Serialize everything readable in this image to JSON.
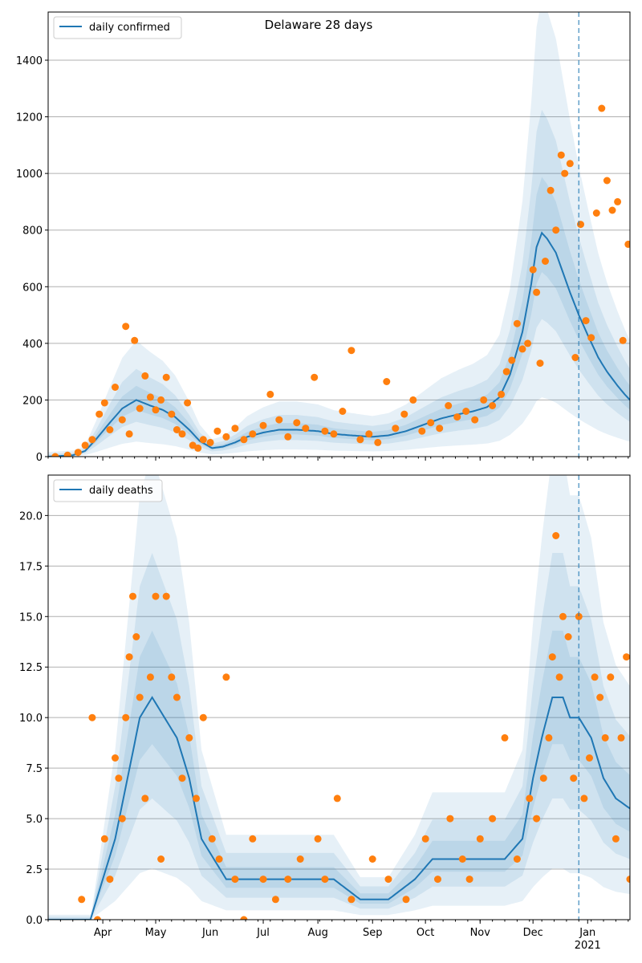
{
  "colors": {
    "line": "#1f77b4",
    "points": "#ff7f0e",
    "band": "#1f77b4",
    "grid": "#b0b0b0",
    "vline": "#1f77b4"
  },
  "chart_data": [
    {
      "type": "line",
      "title": "Delaware 28 days",
      "legend": {
        "label": "daily confirmed",
        "placement": "top-left"
      },
      "grid": "horizontal",
      "xlim": [
        "2020-03-01",
        "2021-01-25"
      ],
      "ylim": [
        0,
        1570
      ],
      "yticks": [
        0,
        200,
        400,
        600,
        800,
        1000,
        1200,
        1400
      ],
      "ytick_labels": [
        "0",
        "200",
        "400",
        "600",
        "800",
        "1000",
        "1200",
        "1400"
      ],
      "forecast_start": "2020-12-27",
      "median": {
        "dates": [
          "2020-03-01",
          "2020-03-15",
          "2020-03-22",
          "2020-03-28",
          "2020-04-05",
          "2020-04-12",
          "2020-04-20",
          "2020-04-28",
          "2020-05-05",
          "2020-05-12",
          "2020-05-20",
          "2020-05-26",
          "2020-06-02",
          "2020-06-08",
          "2020-06-15",
          "2020-06-22",
          "2020-07-01",
          "2020-07-10",
          "2020-07-20",
          "2020-08-01",
          "2020-08-10",
          "2020-08-20",
          "2020-09-01",
          "2020-09-10",
          "2020-09-20",
          "2020-10-01",
          "2020-10-10",
          "2020-10-20",
          "2020-10-28",
          "2020-11-05",
          "2020-11-12",
          "2020-11-18",
          "2020-11-25",
          "2020-11-30",
          "2020-12-03",
          "2020-12-06",
          "2020-12-09",
          "2020-12-14",
          "2020-12-18",
          "2020-12-22",
          "2020-12-27",
          "2021-01-01",
          "2021-01-07",
          "2021-01-12",
          "2021-01-18",
          "2021-01-22",
          "2021-01-25"
        ],
        "values": [
          0,
          5,
          20,
          60,
          120,
          170,
          200,
          180,
          165,
          140,
          95,
          55,
          30,
          35,
          50,
          70,
          85,
          95,
          95,
          90,
          80,
          75,
          70,
          75,
          90,
          115,
          135,
          150,
          160,
          175,
          210,
          290,
          440,
          610,
          740,
          790,
          770,
          720,
          650,
          580,
          500,
          430,
          350,
          300,
          250,
          220,
          200
        ]
      },
      "band_half_widths": [
        0.25,
        0.55,
        1.05
      ],
      "observed": {
        "dates": [
          "2020-03-05",
          "2020-03-12",
          "2020-03-18",
          "2020-03-22",
          "2020-03-26",
          "2020-03-30",
          "2020-04-02",
          "2020-04-05",
          "2020-04-08",
          "2020-04-12",
          "2020-04-14",
          "2020-04-16",
          "2020-04-19",
          "2020-04-22",
          "2020-04-25",
          "2020-04-28",
          "2020-05-01",
          "2020-05-04",
          "2020-05-07",
          "2020-05-10",
          "2020-05-13",
          "2020-05-16",
          "2020-05-19",
          "2020-05-22",
          "2020-05-25",
          "2020-05-28",
          "2020-06-01",
          "2020-06-05",
          "2020-06-10",
          "2020-06-15",
          "2020-06-20",
          "2020-06-25",
          "2020-07-01",
          "2020-07-05",
          "2020-07-10",
          "2020-07-15",
          "2020-07-20",
          "2020-07-25",
          "2020-07-30",
          "2020-08-05",
          "2020-08-10",
          "2020-08-15",
          "2020-08-20",
          "2020-08-25",
          "2020-08-30",
          "2020-09-04",
          "2020-09-09",
          "2020-09-14",
          "2020-09-19",
          "2020-09-24",
          "2020-09-29",
          "2020-10-04",
          "2020-10-09",
          "2020-10-14",
          "2020-10-19",
          "2020-10-24",
          "2020-10-29",
          "2020-11-03",
          "2020-11-08",
          "2020-11-13",
          "2020-11-16",
          "2020-11-19",
          "2020-11-22",
          "2020-11-25",
          "2020-11-28",
          "2020-12-01",
          "2020-12-03",
          "2020-12-05",
          "2020-12-08",
          "2020-12-11",
          "2020-12-14",
          "2020-12-17",
          "2020-12-19",
          "2020-12-22",
          "2020-12-25",
          "2020-12-28",
          "2020-12-31",
          "2021-01-03",
          "2021-01-06",
          "2021-01-09",
          "2021-01-12",
          "2021-01-15",
          "2021-01-18",
          "2021-01-21",
          "2021-01-24"
        ],
        "values": [
          0,
          5,
          15,
          40,
          60,
          150,
          190,
          95,
          245,
          130,
          460,
          80,
          410,
          170,
          285,
          210,
          165,
          200,
          280,
          150,
          95,
          80,
          190,
          40,
          30,
          60,
          50,
          90,
          70,
          100,
          60,
          80,
          110,
          220,
          130,
          70,
          120,
          100,
          280,
          90,
          80,
          160,
          375,
          60,
          80,
          50,
          265,
          100,
          150,
          200,
          90,
          120,
          100,
          180,
          140,
          160,
          130,
          200,
          180,
          220,
          300,
          340,
          470,
          380,
          400,
          660,
          580,
          330,
          690,
          940,
          800,
          1065,
          1000,
          1035,
          350,
          820,
          480,
          420,
          860,
          1230,
          975,
          870,
          900,
          410,
          750
        ]
      }
    },
    {
      "type": "line",
      "title": "",
      "legend": {
        "label": "daily deaths",
        "placement": "top-left"
      },
      "grid": "horizontal",
      "xlim": [
        "2020-03-01",
        "2021-01-25"
      ],
      "ylim": [
        0,
        22
      ],
      "yticks": [
        0,
        2.5,
        5,
        7.5,
        10,
        12.5,
        15,
        17.5,
        20
      ],
      "ytick_labels": [
        "0.0",
        "2.5",
        "5.0",
        "7.5",
        "10.0",
        "12.5",
        "15.0",
        "17.5",
        "20.0"
      ],
      "forecast_start": "2020-12-27",
      "median": {
        "dates": [
          "2020-03-01",
          "2020-03-25",
          "2020-04-01",
          "2020-04-08",
          "2020-04-15",
          "2020-04-22",
          "2020-04-29",
          "2020-05-06",
          "2020-05-13",
          "2020-05-20",
          "2020-05-27",
          "2020-06-03",
          "2020-06-10",
          "2020-06-17",
          "2020-07-01",
          "2020-07-20",
          "2020-08-01",
          "2020-08-10",
          "2020-08-25",
          "2020-09-10",
          "2020-09-25",
          "2020-10-05",
          "2020-10-20",
          "2020-11-01",
          "2020-11-15",
          "2020-11-25",
          "2020-12-01",
          "2020-12-06",
          "2020-12-12",
          "2020-12-18",
          "2020-12-22",
          "2020-12-27",
          "2021-01-03",
          "2021-01-10",
          "2021-01-17",
          "2021-01-25"
        ],
        "values": [
          0,
          0,
          2,
          4,
          7,
          10,
          11,
          10,
          9,
          7,
          4,
          3,
          2,
          2,
          2,
          2,
          2,
          2,
          1,
          1,
          2,
          3,
          3,
          3,
          3,
          4,
          7,
          9,
          11,
          11,
          10,
          10,
          9,
          7,
          6,
          5.5
        ]
      },
      "band_half_widths": [
        0.3,
        0.65,
        1.1
      ],
      "observed": {
        "dates": [
          "2020-03-20",
          "2020-03-26",
          "2020-03-29",
          "2020-04-02",
          "2020-04-05",
          "2020-04-08",
          "2020-04-10",
          "2020-04-12",
          "2020-04-14",
          "2020-04-16",
          "2020-04-18",
          "2020-04-20",
          "2020-04-22",
          "2020-04-25",
          "2020-04-28",
          "2020-05-01",
          "2020-05-04",
          "2020-05-07",
          "2020-05-10",
          "2020-05-13",
          "2020-05-16",
          "2020-05-20",
          "2020-05-24",
          "2020-05-28",
          "2020-06-02",
          "2020-06-06",
          "2020-06-10",
          "2020-06-15",
          "2020-06-20",
          "2020-06-25",
          "2020-07-01",
          "2020-07-08",
          "2020-07-15",
          "2020-07-22",
          "2020-08-01",
          "2020-08-05",
          "2020-08-12",
          "2020-08-20",
          "2020-09-01",
          "2020-09-10",
          "2020-09-20",
          "2020-10-01",
          "2020-10-08",
          "2020-10-15",
          "2020-10-22",
          "2020-10-26",
          "2020-11-01",
          "2020-11-08",
          "2020-11-15",
          "2020-11-22",
          "2020-11-29",
          "2020-12-03",
          "2020-12-07",
          "2020-12-10",
          "2020-12-12",
          "2020-12-14",
          "2020-12-16",
          "2020-12-18",
          "2020-12-21",
          "2020-12-24",
          "2020-12-27",
          "2020-12-30",
          "2021-01-02",
          "2021-01-05",
          "2021-01-08",
          "2021-01-11",
          "2021-01-14",
          "2021-01-17",
          "2021-01-20",
          "2021-01-23",
          "2021-01-25"
        ],
        "values": [
          1,
          10,
          0,
          4,
          2,
          8,
          7,
          5,
          10,
          13,
          16,
          14,
          11,
          6,
          12,
          16,
          3,
          16,
          12,
          11,
          7,
          9,
          6,
          10,
          4,
          3,
          12,
          2,
          0,
          4,
          2,
          1,
          2,
          3,
          4,
          2,
          6,
          1,
          3,
          2,
          1,
          4,
          2,
          5,
          3,
          2,
          4,
          5,
          9,
          3,
          6,
          5,
          7,
          9,
          13,
          19,
          12,
          15,
          14,
          7,
          15,
          6,
          8,
          12,
          11,
          9,
          12,
          4,
          9,
          13,
          2
        ]
      }
    }
  ],
  "x_ticks": {
    "dates": [
      "2020-04-01",
      "2020-05-01",
      "2020-06-01",
      "2020-07-01",
      "2020-08-01",
      "2020-09-01",
      "2020-10-01",
      "2020-11-01",
      "2020-12-01",
      "2021-01-01"
    ],
    "labels": [
      "Apr",
      "May",
      "Jun",
      "Jul",
      "Aug",
      "Sep",
      "Oct",
      "Nov",
      "Dec",
      "Jan"
    ],
    "year_label": "2021"
  }
}
